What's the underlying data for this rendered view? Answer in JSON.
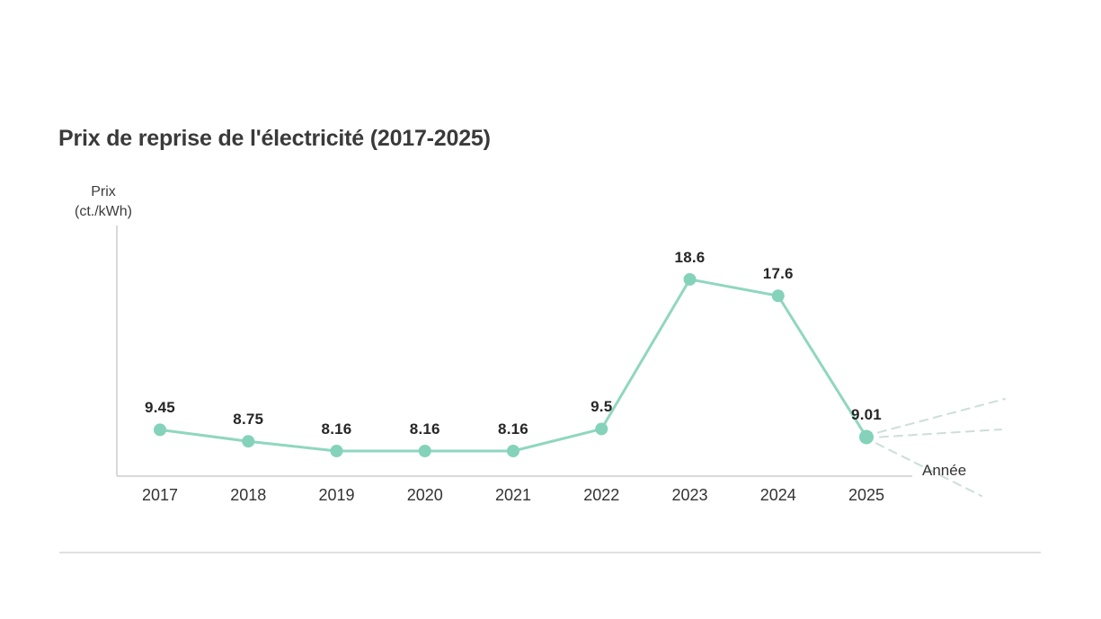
{
  "chart_data": {
    "type": "line",
    "title": "Prix de reprise de l'électricité (2017-2025)",
    "categories": [
      "2017",
      "2018",
      "2019",
      "2020",
      "2021",
      "2022",
      "2023",
      "2024",
      "2025"
    ],
    "values": [
      9.45,
      8.75,
      8.16,
      8.16,
      8.16,
      9.5,
      18.6,
      17.6,
      9.01
    ],
    "point_labels": [
      "9.45",
      "8.75",
      "8.16",
      "8.16",
      "8.16",
      "9.5",
      "18.6",
      "17.6",
      "9.01"
    ],
    "xlabel": "Année",
    "ylabel": "Prix (ct./kWh)",
    "ylabel_lines": [
      "Prix",
      "(ct./kWh)"
    ],
    "grid": false,
    "legend": false,
    "y_ticks_shown": false,
    "series_color": "#8fd7bf",
    "marker_color": "#84d2b9",
    "axis_color": "#d9d9d9",
    "projection": {
      "style": "dashed",
      "count": 3,
      "color": "#ccdfd8",
      "meaning": "fan of three dashed lines after 2025 (rising, flat, falling)"
    }
  }
}
